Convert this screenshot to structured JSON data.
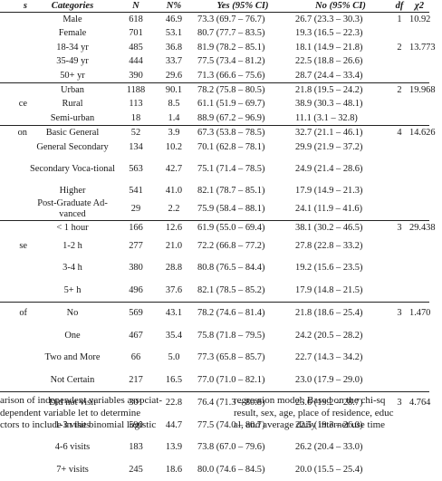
{
  "table": {
    "headers": {
      "variable": "s",
      "categories": "Categories",
      "n": "N",
      "pct": "N%",
      "yes": "Yes (95% CI)",
      "no": "No (95% CI)",
      "df": "df",
      "chi2": "χ2"
    },
    "rows": [
      {
        "variable": "",
        "category": "Male",
        "n": "618",
        "pct": "46.9",
        "yes": "73.3 (69.7 – 76.7)",
        "no": "26.7 (23.3 – 30.3)",
        "df": "1",
        "chi2": "10.92"
      },
      {
        "variable": "",
        "category": "Female",
        "n": "701",
        "pct": "53.1",
        "yes": "80.7 (77.7 – 83.5)",
        "no": "19.3 (16.5 – 22.3)",
        "df": "",
        "chi2": ""
      },
      {
        "variable": "",
        "category": "18-34 yr",
        "n": "485",
        "pct": "36.8",
        "yes": "81.9 (78.2 – 85.1)",
        "no": "18.1 (14.9 – 21.8)",
        "df": "2",
        "chi2": "13.773"
      },
      {
        "variable": "",
        "category": "35-49 yr",
        "n": "444",
        "pct": "33.7",
        "yes": "77.5 (73.4 – 81.2)",
        "no": "22.5 (18.8 – 26.6)",
        "df": "",
        "chi2": ""
      },
      {
        "variable": "",
        "category": "50+ yr",
        "n": "390",
        "pct": "29.6",
        "yes": "71.3 (66.6 – 75.6)",
        "no": "28.7 (24.4 – 33.4)",
        "df": "",
        "chi2": ""
      },
      {
        "variable": "",
        "category": "Urban",
        "n": "1188",
        "pct": "90.1",
        "yes": "78.2 (75.8 – 80.5)",
        "no": "21.8 (19.5 – 24.2)",
        "df": "2",
        "chi2": "19.968"
      },
      {
        "variable": "ce",
        "category": "Rural",
        "n": "113",
        "pct": "8.5",
        "yes": "61.1 (51.9 – 69.7)",
        "no": "38.9 (30.3 – 48.1)",
        "df": "",
        "chi2": ""
      },
      {
        "variable": "",
        "category": "Semi-urban",
        "n": "18",
        "pct": "1.4",
        "yes": "88.9 (67.2 – 96.9)",
        "no": "11.1 (3.1 – 32.8)",
        "df": "",
        "chi2": ""
      },
      {
        "variable": "on",
        "category": "Basic General",
        "n": "52",
        "pct": "3.9",
        "yes": "67.3 (53.8 – 78.5)",
        "no": "32.7 (21.1 – 46.1)",
        "df": "4",
        "chi2": "14.626"
      },
      {
        "variable": "",
        "category": "General Secondary",
        "n": "134",
        "pct": "10.2",
        "yes": "70.1 (62.8 – 78.1)",
        "no": "29.9 (21.9 – 37.2)",
        "df": "",
        "chi2": ""
      },
      {
        "variable": "",
        "category": "Secondary Voca-tional",
        "n": "563",
        "pct": "42.7",
        "yes": "75.1 (71.4 – 78.5)",
        "no": "24.9 (21.4 – 28.6)",
        "df": "",
        "chi2": ""
      },
      {
        "variable": "",
        "category": "Higher",
        "n": "541",
        "pct": "41.0",
        "yes": "82.1 (78.7 – 85.1)",
        "no": "17.9 (14.9 – 21.3)",
        "df": "",
        "chi2": ""
      },
      {
        "variable": "",
        "category": "Post-Graduate Ad-vanced",
        "n": "29",
        "pct": "2.2",
        "yes": "75.9 (58.4 – 88.1)",
        "no": "24.1 (11.9 – 41.6)",
        "df": "",
        "chi2": ""
      },
      {
        "variable": "",
        "category": "< 1 hour",
        "n": "166",
        "pct": "12.6",
        "yes": "61.9 (55.0 – 69.4)",
        "no": "38.1 (30.2 – 46.5)",
        "df": "3",
        "chi2": "29.438"
      },
      {
        "variable": "se",
        "category": "1-2 h",
        "n": "277",
        "pct": "21.0",
        "yes": "72.2 (66.8 – 77.2)",
        "no": "27.8 (22.8 – 33.2)",
        "df": "",
        "chi2": ""
      },
      {
        "variable": "",
        "category": "3-4 h",
        "n": "380",
        "pct": "28.8",
        "yes": "80.8 (76.5 – 84.4)",
        "no": "19.2 (15.6 – 23.5)",
        "df": "",
        "chi2": ""
      },
      {
        "variable": "",
        "category": "5+ h",
        "n": "496",
        "pct": "37.6",
        "yes": "82.1 (78.5 – 85.2)",
        "no": "17.9 (14.8 – 21.5)",
        "df": "",
        "chi2": ""
      },
      {
        "variable": "of",
        "category": "No",
        "n": "569",
        "pct": "43.1",
        "yes": "78.2 (74.6 – 81.4)",
        "no": "21.8 (18.6 – 25.4)",
        "df": "3",
        "chi2": "1.470"
      },
      {
        "variable": "",
        "category": "One",
        "n": "467",
        "pct": "35.4",
        "yes": "75.8 (71.8 – 79.5)",
        "no": "24.2 (20.5 – 28.2)",
        "df": "",
        "chi2": ""
      },
      {
        "variable": "",
        "category": "Two and More",
        "n": "66",
        "pct": "5.0",
        "yes": "77.3 (65.8 – 85.7)",
        "no": "22.7 (14.3 – 34.2)",
        "df": "",
        "chi2": ""
      },
      {
        "variable": "",
        "category": "Not Certain",
        "n": "217",
        "pct": "16.5",
        "yes": "77.0 (71.0 – 82.1)",
        "no": "23.0 (17.9 – 29.0)",
        "df": "",
        "chi2": ""
      },
      {
        "variable": "",
        "category": "Did not visit",
        "n": "301",
        "pct": "22.8",
        "yes": "76.4 (71.3 – 80.8)",
        "no": "23.6 (19.2 – 28.7)",
        "df": "3",
        "chi2": "4.764"
      },
      {
        "variable": "",
        "category": "1-3 visits",
        "n": "590",
        "pct": "44.7",
        "yes": "77.5 (74.0 – 80.7)",
        "no": "22.5 (19.3 – 26.0)",
        "df": "",
        "chi2": ""
      },
      {
        "variable": "",
        "category": "4-6 visits",
        "n": "183",
        "pct": "13.9",
        "yes": "73.8 (67.0 – 79.6)",
        "no": "26.2 (20.4 – 33.0)",
        "df": "",
        "chi2": ""
      },
      {
        "variable": "",
        "category": "7+ visits",
        "n": "245",
        "pct": "18.6",
        "yes": "80.0 (74.6 – 84.5)",
        "no": "20.0 (15.5 – 25.4)",
        "df": "",
        "chi2": ""
      }
    ]
  },
  "caption": {
    "left_lines": [
      "arison of independent variables associat-",
      "dependent variable let to determine",
      "ctors to include in the binomial logistic"
    ],
    "right_lines": [
      "regression model. Based on the chi-sq",
      "result, sex, age, place of residence, educ",
      "al, and average daily internet use time"
    ]
  }
}
